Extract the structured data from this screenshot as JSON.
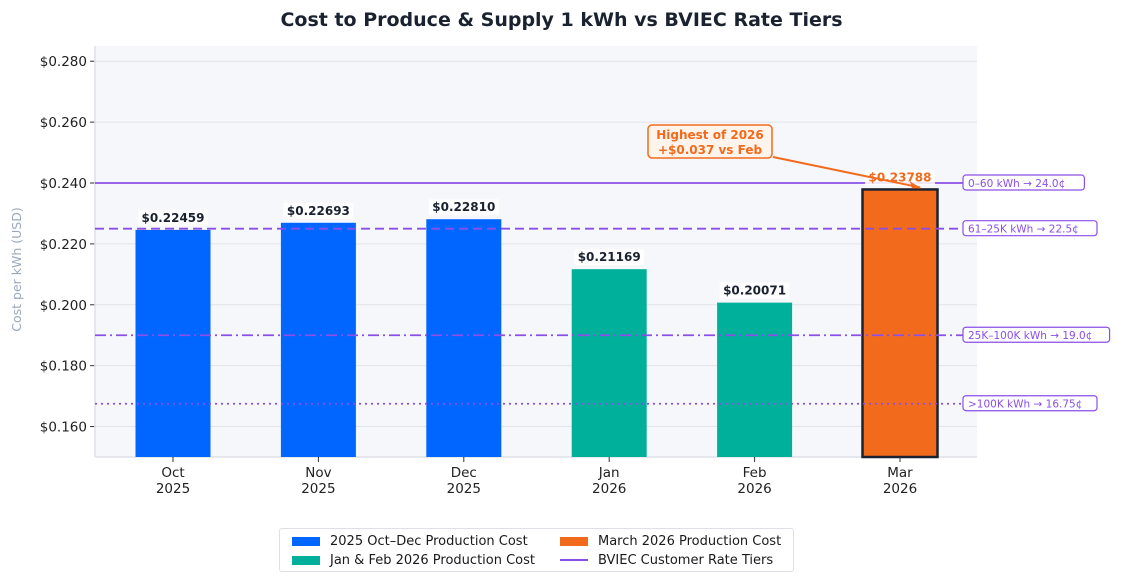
{
  "chart_data": {
    "type": "bar",
    "title": "Cost to Produce & Supply 1 kWh vs  BVIEC Rate Tiers",
    "xlabel": "",
    "ylabel": "Cost per kWh (USD)",
    "ylim": [
      0.15,
      0.285
    ],
    "yticks": [
      0.16,
      0.18,
      0.2,
      0.22,
      0.24,
      0.26,
      0.28
    ],
    "ytick_labels": [
      "$0.160",
      "$0.180",
      "$0.200",
      "$0.220",
      "$0.240",
      "$0.260",
      "$0.280"
    ],
    "grid": true,
    "categories": [
      {
        "month": "Oct",
        "year": "2025"
      },
      {
        "month": "Nov",
        "year": "2025"
      },
      {
        "month": "Dec",
        "year": "2025"
      },
      {
        "month": "Jan",
        "year": "2026"
      },
      {
        "month": "Feb",
        "year": "2026"
      },
      {
        "month": "Mar",
        "year": "2026"
      }
    ],
    "values": [
      0.22459,
      0.22693,
      0.2281,
      0.21169,
      0.20071,
      0.23788
    ],
    "value_labels": [
      "$0.22459",
      "$0.22693",
      "$0.22810",
      "$0.21169",
      "$0.20071",
      "$0.23788"
    ],
    "bar_groups": [
      0,
      0,
      0,
      1,
      1,
      2
    ],
    "series": [
      {
        "name": "2025 Oct–Dec Production Cost",
        "color": "#0066ff"
      },
      {
        "name": "Jan & Feb 2026 Production Cost",
        "color": "#00b09b"
      },
      {
        "name": "March 2026 Production Cost",
        "color": "#f26b1d"
      }
    ],
    "rate_tiers": {
      "name": "BVIEC Customer Rate Tiers",
      "color": "#8a4fe8",
      "lines": [
        {
          "value": 0.24,
          "style": "solid",
          "label": "0–60 kWh  →  24.0¢"
        },
        {
          "value": 0.225,
          "style": "dashed",
          "label": "61–25K kWh  →  22.5¢"
        },
        {
          "value": 0.19,
          "style": "dashdot",
          "label": "25K–100K kWh  →  19.0¢"
        },
        {
          "value": 0.1675,
          "style": "dotted",
          "label": ">100K kWh  →  16.75¢"
        }
      ]
    },
    "annotation": {
      "lines": [
        "Highest of 2026",
        "+$0.037 vs Feb"
      ],
      "target_index": 5,
      "color": "#f26b1d"
    },
    "legend": {
      "placement": "bottom-center",
      "entries": [
        {
          "label": "2025 Oct–Dec Production Cost",
          "kind": "patch",
          "color": "#0066ff"
        },
        {
          "label": "Jan & Feb 2026 Production Cost",
          "kind": "patch",
          "color": "#00b09b"
        },
        {
          "label": "March 2026 Production Cost",
          "kind": "patch",
          "color": "#f26b1d"
        },
        {
          "label": "BVIEC Customer Rate Tiers",
          "kind": "line",
          "color": "#8a4fe8"
        }
      ]
    }
  }
}
